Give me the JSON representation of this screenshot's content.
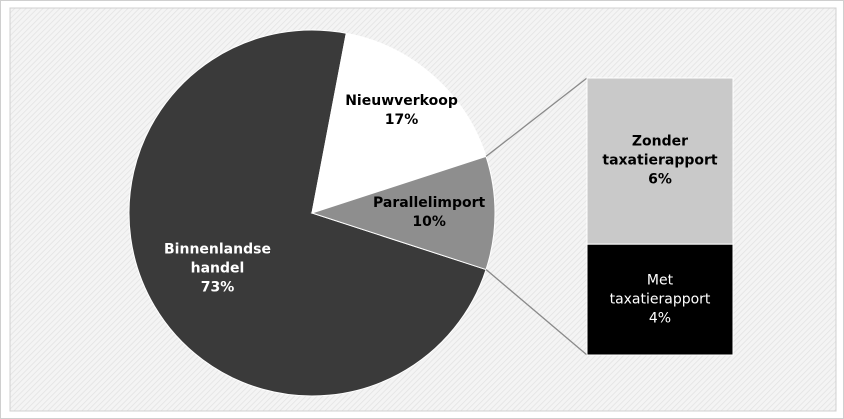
{
  "chart_data": {
    "type": "pie",
    "categories": [
      "Binnenlandse handel",
      "Nieuwverkoop",
      "Parallelimport"
    ],
    "values": [
      73,
      17,
      10
    ],
    "value_labels": [
      "73%",
      "17%",
      "10%"
    ],
    "colors": [
      "#3a3a3a",
      "#ffffff",
      "#8e8e8e"
    ],
    "breakdown": {
      "categories": [
        "Zonder taxatierapport",
        "Met taxatierapport"
      ],
      "values": [
        6,
        4
      ],
      "value_labels": [
        "6%",
        "4%"
      ],
      "colors": [
        "#c9c9c9",
        "#000000"
      ]
    }
  }
}
